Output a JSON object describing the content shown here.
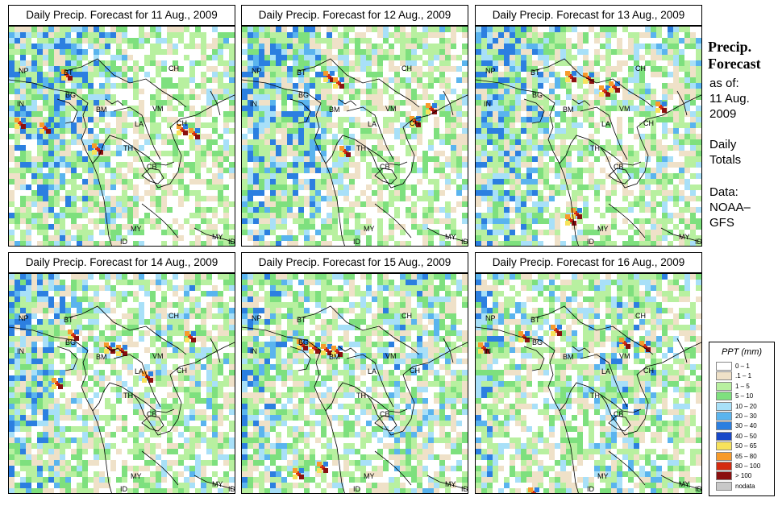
{
  "panels": [
    {
      "title": "Daily Precip. Forecast for  11 Aug., 2009",
      "day": 0
    },
    {
      "title": "Daily Precip. Forecast for  12 Aug., 2009",
      "day": 1
    },
    {
      "title": "Daily Precip. Forecast for  13 Aug., 2009",
      "day": 2
    },
    {
      "title": "Daily Precip. Forecast for  14 Aug., 2009",
      "day": 3
    },
    {
      "title": "Daily Precip. Forecast for  15 Aug., 2009",
      "day": 4
    },
    {
      "title": "Daily Precip. Forecast for  16 Aug., 2009",
      "day": 5
    }
  ],
  "country_labels": [
    "NP",
    "BT",
    "CH",
    "IN",
    "BG",
    "BM",
    "VM",
    "LA",
    "TH",
    "CB",
    "CH",
    "MY",
    "ID",
    "MY",
    "ID"
  ],
  "sidebar": {
    "title_line1": "Precip.",
    "title_line2": "Forecast",
    "asof_line1": "as of:",
    "asof_line2": "11 Aug.",
    "asof_line3": "2009",
    "totals_line1": "Daily",
    "totals_line2": "Totals",
    "data_line1": "Data:",
    "data_line2": "NOAA–",
    "data_line3": "GFS"
  },
  "legend": {
    "title": "PPT (mm)",
    "entries": [
      {
        "label": "0 – 1",
        "color": "#ffffff"
      },
      {
        "label": ".1 – 1",
        "color": "#efe1c8"
      },
      {
        "label": "1 – 5",
        "color": "#b8f0a0"
      },
      {
        "label": "5 – 10",
        "color": "#7ee07e"
      },
      {
        "label": "10 – 20",
        "color": "#a8e0f8"
      },
      {
        "label": "20 – 30",
        "color": "#5ab4ee"
      },
      {
        "label": "30 – 40",
        "color": "#2c7fe0"
      },
      {
        "label": "40 – 50",
        "color": "#1848c8"
      },
      {
        "label": "50 – 65",
        "color": "#f7e25a"
      },
      {
        "label": "65 – 80",
        "color": "#f79a2a"
      },
      {
        "label": "80 – 100",
        "color": "#d42a10"
      },
      {
        "label": "> 100",
        "color": "#8a1010"
      },
      {
        "label": "nodata",
        "color": "#c8c8c8"
      }
    ]
  }
}
